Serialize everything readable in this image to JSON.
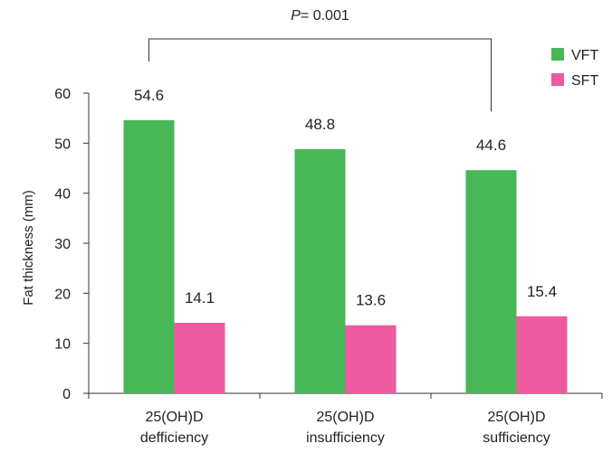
{
  "chart_data": {
    "type": "bar",
    "categories": [
      [
        "25(OH)D",
        "defficiency"
      ],
      [
        "25(OH)D",
        "insufficiency"
      ],
      [
        "25(OH)D",
        "sufficiency"
      ]
    ],
    "series": [
      {
        "name": "VFT",
        "values": [
          54.6,
          48.8,
          44.6
        ],
        "labels": [
          "54.6",
          "48.8",
          "44.6"
        ],
        "color": "#47b757"
      },
      {
        "name": "SFT",
        "values": [
          14.1,
          13.6,
          15.4
        ],
        "labels": [
          "14.1",
          "13.6",
          "15.4"
        ],
        "color": "#ee5a9f"
      }
    ],
    "title": "",
    "xlabel": "",
    "ylabel": "Fat thickness (mm)",
    "ylim": [
      0,
      60
    ],
    "yticks": [
      0,
      10,
      20,
      30,
      40,
      50,
      60
    ],
    "grid": false,
    "legend": "top-right",
    "annotation": {
      "prefix": "P",
      "text": "= 0.001",
      "from_category": 0,
      "to_category": 2
    }
  }
}
